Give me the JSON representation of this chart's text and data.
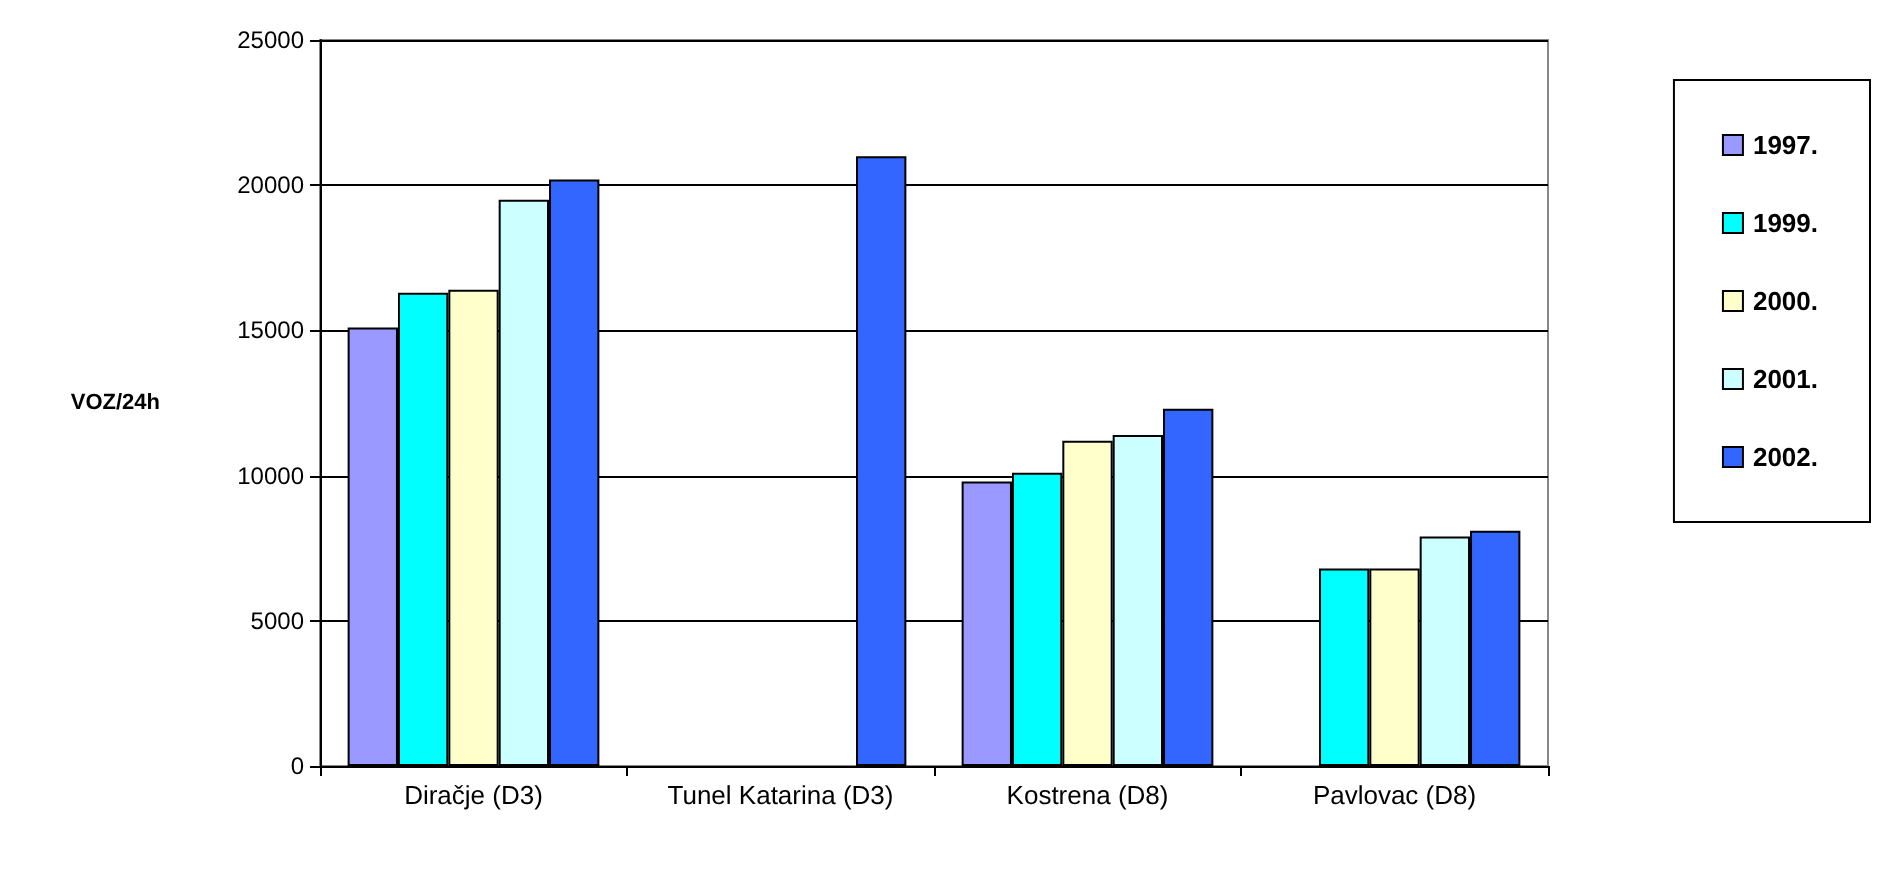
{
  "chart_data": {
    "type": "bar",
    "ylabel": "VOZ/24h",
    "categories": [
      "Diračje (D3)",
      "Tunel Katarina (D3)",
      "Kostrena (D8)",
      "Pavlovac (D8)"
    ],
    "series": [
      {
        "name": "1997.",
        "color": "#9999ff",
        "values": [
          15100,
          0,
          9800,
          0
        ]
      },
      {
        "name": "1999.",
        "color": "#00ffff",
        "values": [
          16300,
          0,
          10100,
          6800
        ]
      },
      {
        "name": "2000.",
        "color": "#ffffcc",
        "values": [
          16400,
          0,
          11200,
          6800
        ]
      },
      {
        "name": "2001.",
        "color": "#ccffff",
        "values": [
          19500,
          0,
          11400,
          7900
        ]
      },
      {
        "name": "2002.",
        "color": "#3366ff",
        "values": [
          20200,
          21000,
          12300,
          8100
        ]
      }
    ],
    "ylim": [
      0,
      25000
    ],
    "yticks": [
      0,
      5000,
      10000,
      15000,
      20000,
      25000
    ],
    "grid": "y",
    "legend": "right"
  }
}
